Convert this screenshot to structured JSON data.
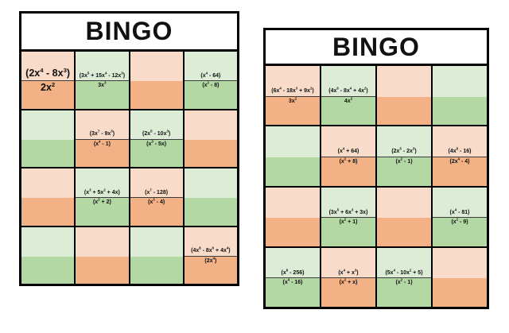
{
  "page": {
    "background": "#ffffff"
  },
  "colors": {
    "orange_light": "#f8dbc8",
    "orange_dark": "#f2b286",
    "green_light": "#ddecd6",
    "green_dark": "#b4d8a4",
    "grid_border": "#000000",
    "fraction_bar": "#3c3c3c",
    "text": "#111111"
  },
  "cards": [
    {
      "title": "BINGO",
      "grid": [
        [
          {
            "color": "orange",
            "numerator": "(2x^4 - 8x^3)",
            "denominator": "2x^2",
            "size": "large"
          },
          {
            "color": "green",
            "numerator": "(3x^5 + 15x^4 - 12x^3)",
            "denominator": "3x^3",
            "size": "small"
          },
          {
            "color": "orange",
            "numerator": "",
            "denominator": "",
            "size": "small"
          },
          {
            "color": "green",
            "numerator": "(x^4 - 64)",
            "denominator": "(x^2 - 8)",
            "size": "small"
          }
        ],
        [
          {
            "color": "green",
            "numerator": "",
            "denominator": "",
            "size": "small"
          },
          {
            "color": "orange",
            "numerator": "(3x^7 - 9x^3)",
            "denominator": "(x^4 - 1)",
            "size": "small"
          },
          {
            "color": "green",
            "numerator": "(2x^5 - 10x^3)",
            "denominator": "(x^3 - 5x)",
            "size": "small"
          },
          {
            "color": "orange",
            "numerator": "",
            "denominator": "",
            "size": "small"
          }
        ],
        [
          {
            "color": "orange",
            "numerator": "",
            "denominator": "",
            "size": "small"
          },
          {
            "color": "green",
            "numerator": "(x^3 + 5x^2 + 4x)",
            "denominator": "(x^2 + 2)",
            "size": "small"
          },
          {
            "color": "orange",
            "numerator": "(x^7 - 128)",
            "denominator": "(x^3 - 4)",
            "size": "small"
          },
          {
            "color": "green",
            "numerator": "",
            "denominator": "",
            "size": "small"
          }
        ],
        [
          {
            "color": "green",
            "numerator": "",
            "denominator": "",
            "size": "small"
          },
          {
            "color": "orange",
            "numerator": "",
            "denominator": "",
            "size": "small"
          },
          {
            "color": "green",
            "numerator": "",
            "denominator": "",
            "size": "small"
          },
          {
            "color": "orange",
            "numerator": "(4x^8 - 8x^6 + 4x^4)",
            "denominator": "(2x^4)",
            "size": "small"
          }
        ]
      ]
    },
    {
      "title": "BINGO",
      "grid": [
        [
          {
            "color": "orange",
            "numerator": "(6x^4 - 18x^3 + 9x^2)",
            "denominator": "3x^2",
            "size": "small"
          },
          {
            "color": "green",
            "numerator": "(4x^6 - 8x^4 + 4x^2)",
            "denominator": "4x^2",
            "size": "small"
          },
          {
            "color": "orange",
            "numerator": "",
            "denominator": "",
            "size": "small"
          },
          {
            "color": "green",
            "numerator": "",
            "denominator": "",
            "size": "small"
          }
        ],
        [
          {
            "color": "green",
            "numerator": "",
            "denominator": "",
            "size": "small"
          },
          {
            "color": "orange",
            "numerator": "(x^4 + 64)",
            "denominator": "(x^2 + 8)",
            "size": "small"
          },
          {
            "color": "green",
            "numerator": "(2x^5 - 2x^3)",
            "denominator": "(x^2 - 1)",
            "size": "small"
          },
          {
            "color": "orange",
            "numerator": "(4x^8 - 16)",
            "denominator": "(2x^4 - 4)",
            "size": "small"
          }
        ],
        [
          {
            "color": "orange",
            "numerator": "",
            "denominator": "",
            "size": "small"
          },
          {
            "color": "green",
            "numerator": "(3x^5 + 6x^3 + 3x)",
            "denominator": "(x^2 + 1)",
            "size": "small"
          },
          {
            "color": "orange",
            "numerator": "",
            "denominator": "",
            "size": "small"
          },
          {
            "color": "green",
            "numerator": "(x^4 - 81)",
            "denominator": "(x^2 - 9)",
            "size": "small"
          }
        ],
        [
          {
            "color": "green",
            "numerator": "(x^8 - 256)",
            "denominator": "(x^4 - 16)",
            "size": "small"
          },
          {
            "color": "orange",
            "numerator": "(x^4 + x^3)",
            "denominator": "(x^2 + x)",
            "size": "small"
          },
          {
            "color": "green",
            "numerator": "(5x^4 - 10x^2 + 5)",
            "denominator": "(x^2 - 1)",
            "size": "small"
          },
          {
            "color": "orange",
            "numerator": "",
            "denominator": "",
            "size": "small"
          }
        ]
      ]
    }
  ]
}
